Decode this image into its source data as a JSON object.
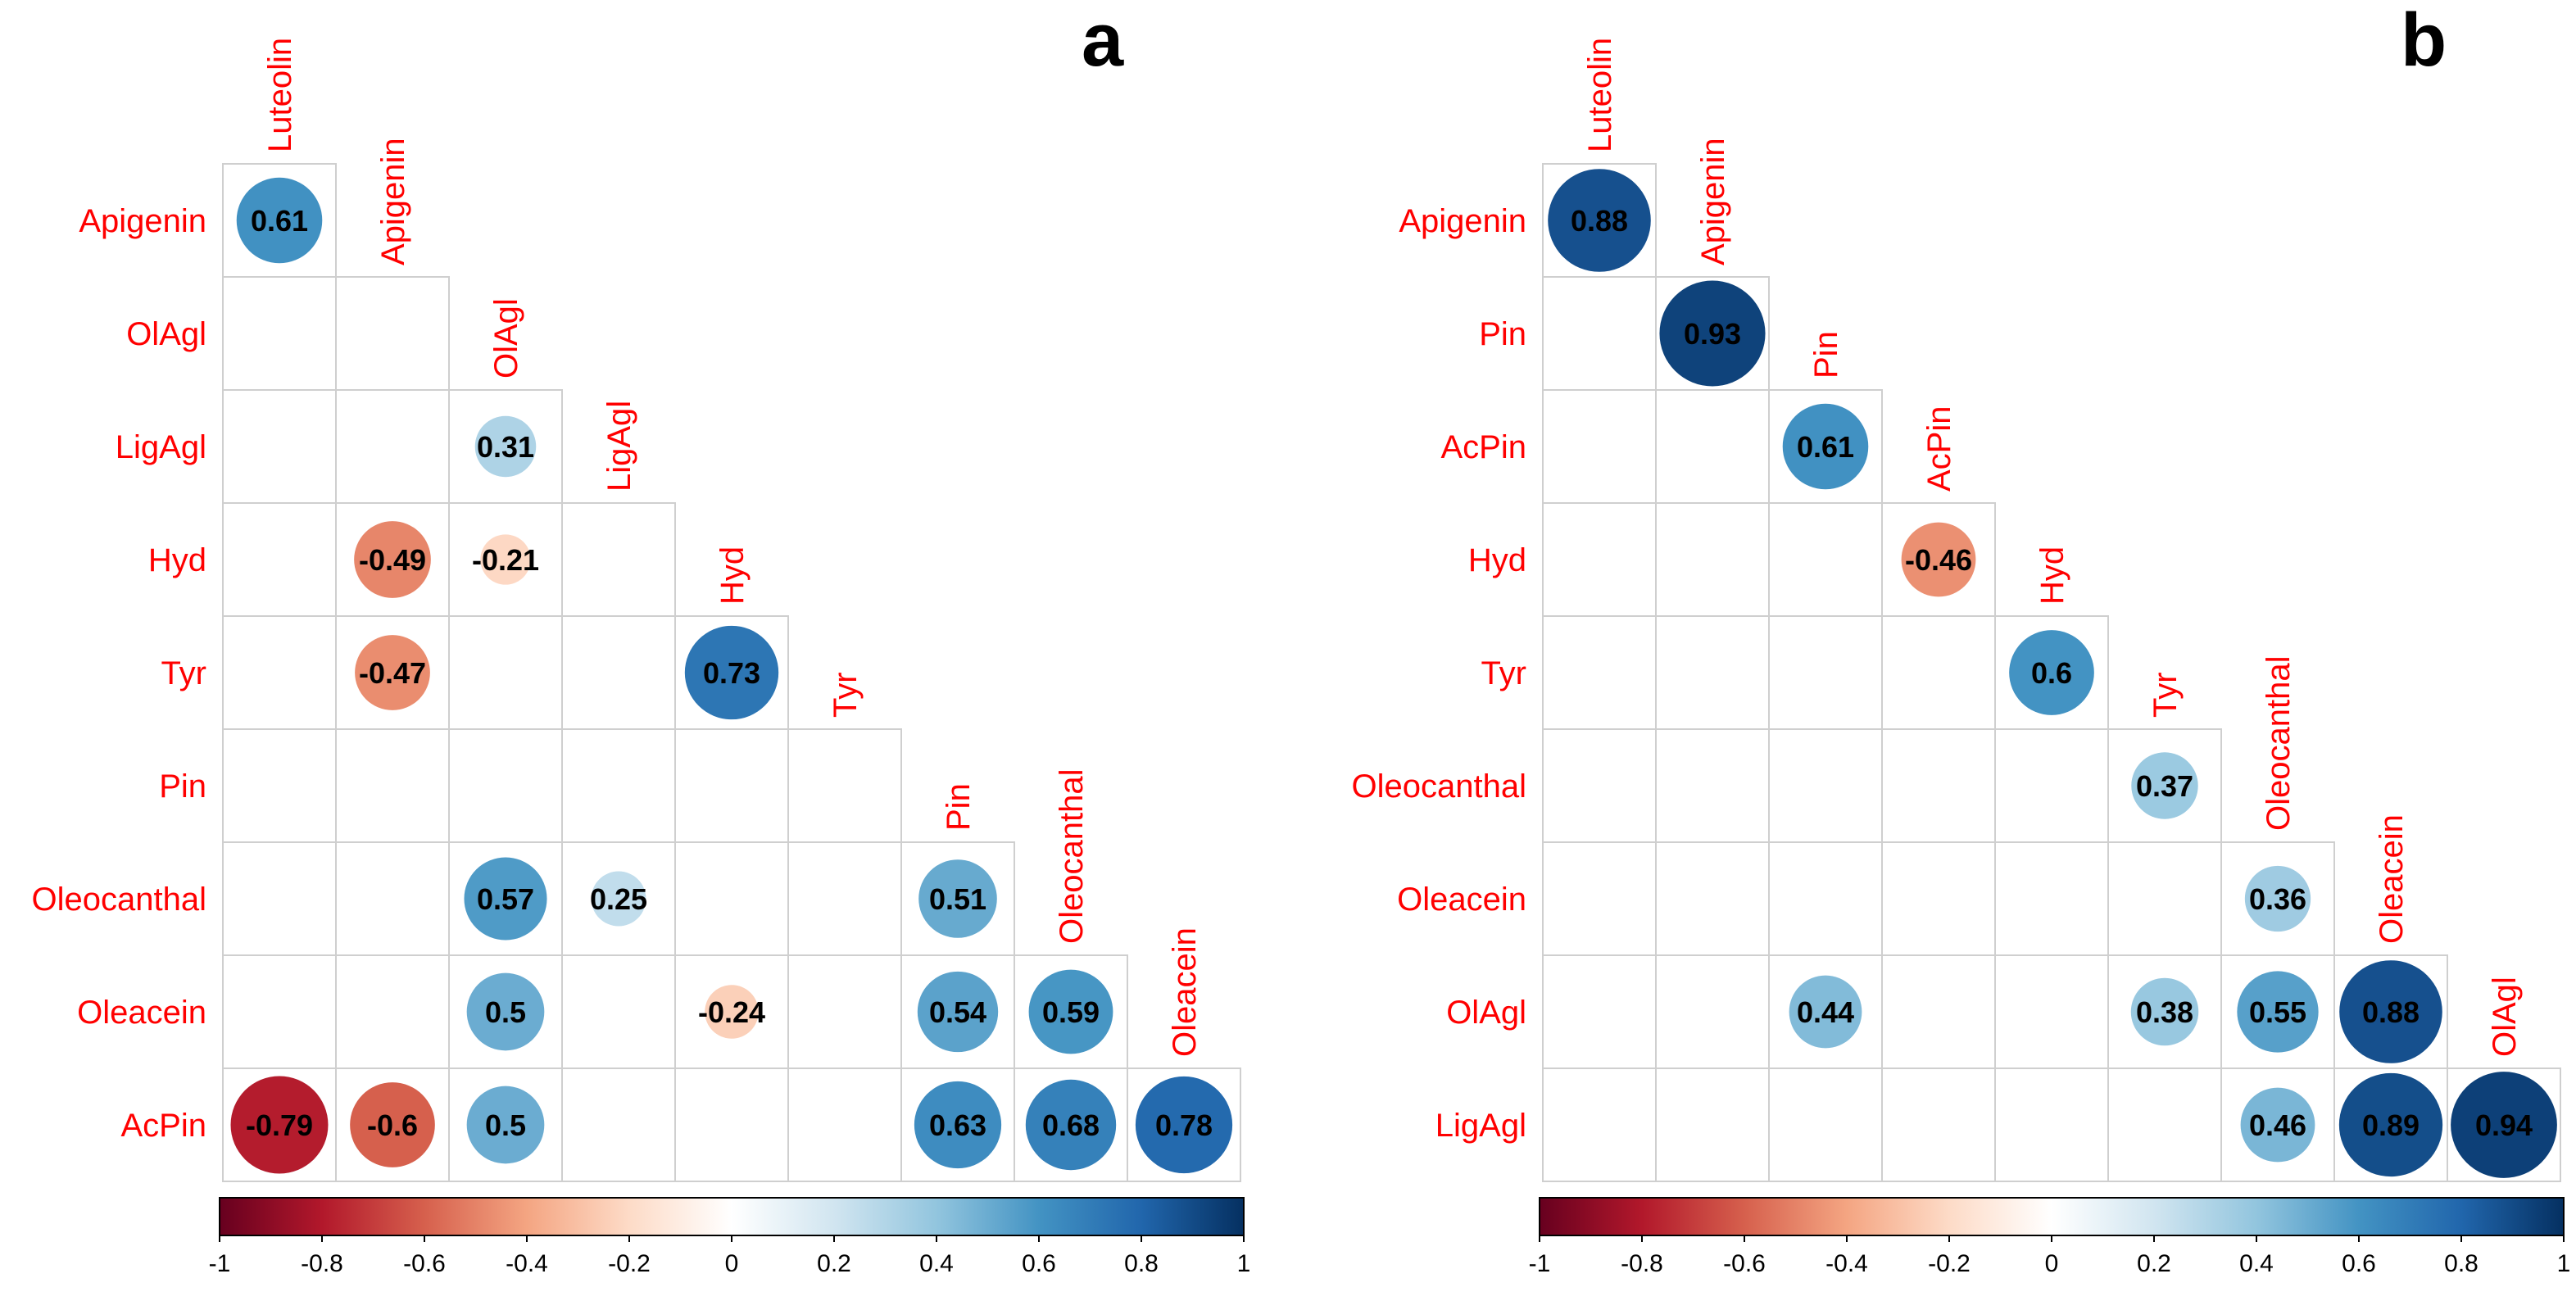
{
  "chart_data": [
    {
      "type": "heatmap",
      "subtype": "correlation-matrix-lower-triangle-circles",
      "panel_label": "a",
      "variables": [
        "Luteolin",
        "Apigenin",
        "OlAgl",
        "LigAgl",
        "Hyd",
        "Tyr",
        "Pin",
        "Oleocanthal",
        "Oleacein",
        "AcPin"
      ],
      "values": [
        {
          "row": "Apigenin",
          "col": "Luteolin",
          "value": 0.61
        },
        {
          "row": "LigAgl",
          "col": "OlAgl",
          "value": 0.31
        },
        {
          "row": "Hyd",
          "col": "Apigenin",
          "value": -0.49
        },
        {
          "row": "Hyd",
          "col": "OlAgl",
          "value": -0.21
        },
        {
          "row": "Tyr",
          "col": "Apigenin",
          "value": -0.47
        },
        {
          "row": "Tyr",
          "col": "Hyd",
          "value": 0.73
        },
        {
          "row": "Oleocanthal",
          "col": "OlAgl",
          "value": 0.57
        },
        {
          "row": "Oleocanthal",
          "col": "LigAgl",
          "value": 0.25
        },
        {
          "row": "Oleocanthal",
          "col": "Pin",
          "value": 0.51
        },
        {
          "row": "Oleacein",
          "col": "OlAgl",
          "value": 0.5
        },
        {
          "row": "Oleacein",
          "col": "Hyd",
          "value": -0.24
        },
        {
          "row": "Oleacein",
          "col": "Pin",
          "value": 0.54
        },
        {
          "row": "Oleacein",
          "col": "Oleocanthal",
          "value": 0.59
        },
        {
          "row": "AcPin",
          "col": "Luteolin",
          "value": -0.79
        },
        {
          "row": "AcPin",
          "col": "Apigenin",
          "value": -0.6
        },
        {
          "row": "AcPin",
          "col": "OlAgl",
          "value": 0.5
        },
        {
          "row": "AcPin",
          "col": "Pin",
          "value": 0.63
        },
        {
          "row": "AcPin",
          "col": "Oleocanthal",
          "value": 0.68
        },
        {
          "row": "AcPin",
          "col": "Oleacein",
          "value": 0.78
        }
      ],
      "colorbar": {
        "range": [
          -1,
          1
        ],
        "ticks": [
          "-1",
          "-0.8",
          "-0.6",
          "-0.4",
          "-0.2",
          "0",
          "0.2",
          "0.4",
          "0.6",
          "0.8",
          "1"
        ]
      }
    },
    {
      "type": "heatmap",
      "subtype": "correlation-matrix-lower-triangle-circles",
      "panel_label": "b",
      "variables": [
        "Luteolin",
        "Apigenin",
        "Pin",
        "AcPin",
        "Hyd",
        "Tyr",
        "Oleocanthal",
        "Oleacein",
        "OlAgl",
        "LigAgl"
      ],
      "values": [
        {
          "row": "Apigenin",
          "col": "Luteolin",
          "value": 0.88
        },
        {
          "row": "Pin",
          "col": "Apigenin",
          "value": 0.93
        },
        {
          "row": "AcPin",
          "col": "Pin",
          "value": 0.61
        },
        {
          "row": "Hyd",
          "col": "AcPin",
          "value": -0.46
        },
        {
          "row": "Tyr",
          "col": "Hyd",
          "value": 0.6
        },
        {
          "row": "Oleocanthal",
          "col": "Tyr",
          "value": 0.37
        },
        {
          "row": "Oleacein",
          "col": "Oleocanthal",
          "value": 0.36
        },
        {
          "row": "OlAgl",
          "col": "Pin",
          "value": 0.44
        },
        {
          "row": "OlAgl",
          "col": "Tyr",
          "value": 0.38
        },
        {
          "row": "OlAgl",
          "col": "Oleocanthal",
          "value": 0.55
        },
        {
          "row": "OlAgl",
          "col": "Oleacein",
          "value": 0.88
        },
        {
          "row": "LigAgl",
          "col": "Oleocanthal",
          "value": 0.46
        },
        {
          "row": "LigAgl",
          "col": "Oleacein",
          "value": 0.89
        },
        {
          "row": "LigAgl",
          "col": "OlAgl",
          "value": 0.94
        }
      ],
      "colorbar": {
        "range": [
          -1,
          1
        ],
        "ticks": [
          "-1",
          "-0.8",
          "-0.6",
          "-0.4",
          "-0.2",
          "0",
          "0.2",
          "0.4",
          "0.6",
          "0.8",
          "1"
        ]
      }
    }
  ],
  "colors": {
    "label_color": "#ff0000",
    "colorscale": [
      "#67001F",
      "#B2182B",
      "#D6604D",
      "#F4A582",
      "#FDDBC7",
      "#FFFFFF",
      "#D1E5F0",
      "#92C5DE",
      "#4393C3",
      "#2166AC",
      "#053061"
    ]
  }
}
